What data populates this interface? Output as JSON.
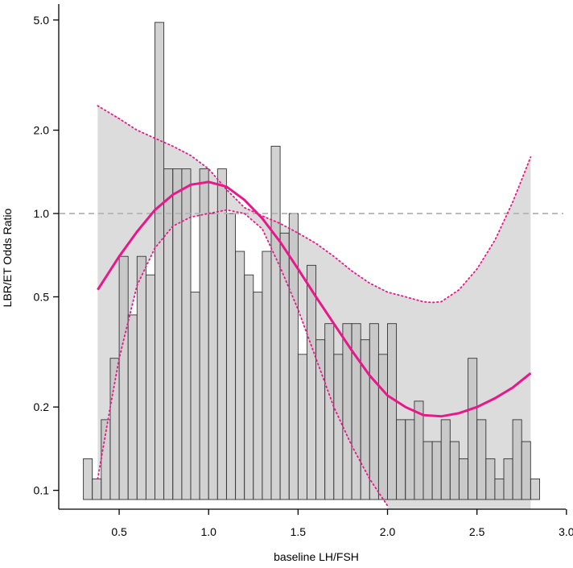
{
  "chart_data": {
    "type": "bar",
    "title": "",
    "xlabel": "baseline LH/FSH",
    "ylabel": "LBR/ET Odds Ratio",
    "xlim": [
      0.3,
      3.0
    ],
    "ylim_log": [
      0.09,
      5.5
    ],
    "y_scale": "log",
    "x_ticks": [
      "0.5",
      "1.0",
      "1.5",
      "2.0",
      "2.5",
      "3.0"
    ],
    "y_ticks": [
      "0.1",
      "0.2",
      "0.5",
      "1.0",
      "2.0",
      "5.0"
    ],
    "reference_line": {
      "y": 1.0,
      "style": "dashed"
    },
    "histogram": {
      "bin_width": 0.05,
      "x_left": [
        0.3,
        0.35,
        0.4,
        0.45,
        0.5,
        0.55,
        0.6,
        0.65,
        0.7,
        0.75,
        0.8,
        0.85,
        0.9,
        0.95,
        1.0,
        1.05,
        1.1,
        1.15,
        1.2,
        1.25,
        1.3,
        1.35,
        1.4,
        1.45,
        1.5,
        1.55,
        1.6,
        1.65,
        1.7,
        1.75,
        1.8,
        1.85,
        1.9,
        1.95,
        2.0,
        2.05,
        2.1,
        2.15,
        2.2,
        2.25,
        2.3,
        2.35,
        2.4,
        2.45,
        2.5,
        2.55,
        2.6,
        2.65,
        2.7,
        2.75,
        2.8
      ],
      "heights": [
        0.13,
        0.11,
        0.18,
        0.3,
        0.7,
        0.43,
        0.7,
        0.6,
        4.9,
        1.45,
        1.45,
        1.45,
        0.52,
        1.45,
        1.0,
        1.45,
        1.0,
        0.73,
        0.6,
        0.52,
        0.73,
        1.75,
        0.85,
        1.0,
        0.31,
        0.65,
        0.35,
        0.4,
        0.31,
        0.4,
        0.4,
        0.35,
        0.4,
        0.31,
        0.4,
        0.18,
        0.18,
        0.21,
        0.15,
        0.15,
        0.18,
        0.15,
        0.13,
        0.3,
        0.18,
        0.13,
        0.11,
        0.13,
        0.18,
        0.15,
        0.11
      ]
    },
    "series": [
      {
        "kind": "fit",
        "color": "#e8178a",
        "x": [
          0.38,
          0.5,
          0.6,
          0.7,
          0.8,
          0.9,
          1.0,
          1.1,
          1.2,
          1.3,
          1.4,
          1.5,
          1.6,
          1.7,
          1.8,
          1.9,
          2.0,
          2.1,
          2.2,
          2.3,
          2.4,
          2.5,
          2.6,
          2.7,
          2.8
        ],
        "y": [
          0.53,
          0.7,
          0.86,
          1.03,
          1.17,
          1.27,
          1.3,
          1.25,
          1.12,
          0.96,
          0.79,
          0.63,
          0.5,
          0.4,
          0.32,
          0.26,
          0.22,
          0.2,
          0.187,
          0.185,
          0.19,
          0.2,
          0.215,
          0.235,
          0.265
        ]
      },
      {
        "kind": "ci_upper",
        "color": "#e8178a",
        "x": [
          0.38,
          0.5,
          0.6,
          0.7,
          0.8,
          0.9,
          1.0,
          1.1,
          1.2,
          1.3,
          1.4,
          1.5,
          1.6,
          1.7,
          1.8,
          1.9,
          2.0,
          2.1,
          2.2,
          2.25,
          2.3,
          2.4,
          2.5,
          2.6,
          2.7,
          2.8
        ],
        "y": [
          2.45,
          2.2,
          2.0,
          1.87,
          1.75,
          1.62,
          1.45,
          1.22,
          1.05,
          0.98,
          0.92,
          0.85,
          0.78,
          0.7,
          0.62,
          0.56,
          0.52,
          0.5,
          0.48,
          0.477,
          0.48,
          0.53,
          0.63,
          0.8,
          1.1,
          1.6
        ]
      },
      {
        "kind": "ci_lower",
        "color": "#e8178a",
        "x": [
          0.38,
          0.45,
          0.5,
          0.6,
          0.7,
          0.8,
          0.9,
          1.0,
          1.1,
          1.2,
          1.3,
          1.4,
          1.5,
          1.6,
          1.7,
          1.8,
          1.9,
          2.0
        ],
        "y": [
          0.11,
          0.2,
          0.3,
          0.55,
          0.75,
          0.9,
          0.97,
          1.0,
          1.03,
          1.0,
          0.88,
          0.64,
          0.45,
          0.3,
          0.2,
          0.145,
          0.11,
          0.088
        ]
      }
    ],
    "ci_band_color": "#dcdcdc"
  }
}
